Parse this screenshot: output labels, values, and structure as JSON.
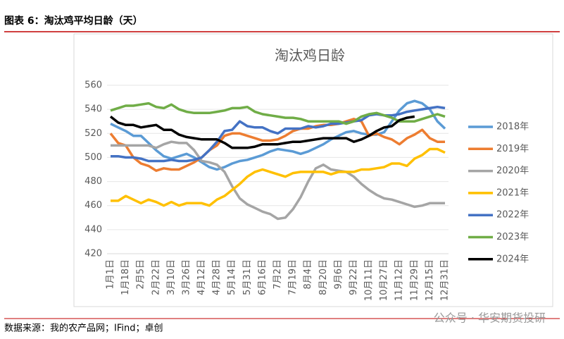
{
  "page": {
    "header": "图表 6：淘汰鸡平均日龄（天）",
    "source": "数据来源：我的农产品网；IFind；卓创",
    "watermark": "公众号 · 华安期货投研"
  },
  "chart_data": {
    "type": "line",
    "title": "淘汰鸡日龄",
    "categories": [
      "1月1日",
      null,
      "1月18日",
      null,
      "2月5日",
      null,
      "2月22日",
      null,
      "3月10日",
      null,
      "3月26日",
      null,
      "4月12日",
      null,
      "4月28日",
      null,
      "5月14日",
      null,
      "5月31日",
      null,
      "6月16日",
      null,
      "7月2日",
      null,
      "7月19日",
      null,
      "8月4日",
      null,
      "8月20日",
      null,
      "9月6日",
      null,
      "9月22日",
      null,
      "10月11日",
      null,
      "10月27日",
      null,
      "11月12日",
      null,
      "11月29日",
      null,
      "12月15日",
      null,
      "12月31日"
    ],
    "series": [
      {
        "name": "2018年",
        "color": "#5b9bd5",
        "values": [
          528,
          525,
          522,
          518,
          518,
          512,
          506,
          501,
          499,
          501,
          503,
          500,
          496,
          492,
          490,
          492,
          495,
          497,
          498,
          500,
          502,
          505,
          507,
          506,
          505,
          503,
          505,
          508,
          511,
          515,
          518,
          521,
          522,
          520,
          519,
          519,
          521,
          530,
          539,
          545,
          547,
          545,
          540,
          530,
          524
        ]
      },
      {
        "name": "2019年",
        "color": "#ed7d31",
        "values": [
          520,
          512,
          510,
          500,
          495,
          493,
          489,
          491,
          490,
          490,
          493,
          496,
          500,
          506,
          510,
          518,
          520,
          520,
          518,
          516,
          514,
          514,
          515,
          518,
          522,
          524,
          524,
          526,
          527,
          527,
          528,
          530,
          532,
          530,
          518,
          520,
          517,
          515,
          511,
          516,
          519,
          523,
          516,
          513,
          513
        ]
      },
      {
        "name": "2020年",
        "color": "#a5a5a5",
        "values": [
          510,
          510,
          510,
          510,
          510,
          510,
          508,
          511,
          513,
          512,
          512,
          506,
          497,
          496,
          494,
          488,
          476,
          466,
          461,
          458,
          455,
          453,
          449,
          450,
          457,
          467,
          480,
          491,
          494,
          490,
          489,
          488,
          484,
          478,
          473,
          469,
          466,
          465,
          463,
          461,
          459,
          460,
          462,
          462,
          462
        ]
      },
      {
        "name": "2021年",
        "color": "#ffc000",
        "values": [
          464,
          464,
          468,
          465,
          462,
          465,
          463,
          460,
          463,
          460,
          462,
          462,
          462,
          460,
          465,
          468,
          473,
          478,
          484,
          488,
          490,
          488,
          486,
          484,
          487,
          488,
          488,
          488,
          488,
          486,
          488,
          488,
          488,
          490,
          490,
          491,
          492,
          495,
          495,
          493,
          499,
          502,
          507,
          507,
          504
        ]
      },
      {
        "name": "2022年",
        "color": "#4472c4",
        "values": [
          501,
          501,
          500,
          500,
          499,
          497,
          497,
          497,
          498,
          497,
          497,
          498,
          500,
          506,
          513,
          522,
          523,
          530,
          526,
          525,
          525,
          522,
          520,
          524,
          524,
          524,
          526,
          525,
          526,
          528,
          528,
          529,
          530,
          531,
          535,
          536,
          535,
          535,
          536,
          538,
          539,
          540,
          541,
          542,
          541
        ]
      },
      {
        "name": "2023年",
        "color": "#70ad47",
        "values": [
          539,
          541,
          543,
          543,
          544,
          545,
          542,
          541,
          544,
          540,
          538,
          537,
          537,
          537,
          538,
          539,
          541,
          541,
          542,
          538,
          536,
          535,
          534,
          533,
          533,
          532,
          530,
          530,
          530,
          530,
          530,
          528,
          530,
          534,
          536,
          537,
          535,
          533,
          530,
          530,
          530,
          532,
          534,
          536,
          534
        ]
      },
      {
        "name": "2024年",
        "color": "#000000",
        "values": [
          534,
          529,
          527,
          527,
          525,
          526,
          527,
          523,
          523,
          519,
          517,
          516,
          515,
          515,
          515,
          512,
          508,
          508,
          508,
          509,
          511,
          511,
          511,
          512,
          513,
          513,
          514,
          515,
          516,
          516,
          516,
          516,
          513,
          515,
          518,
          522,
          525,
          526,
          531,
          533,
          534,
          null,
          null,
          null,
          null
        ]
      }
    ],
    "ylim": [
      420,
      560
    ],
    "yticks": [
      420,
      440,
      460,
      480,
      500,
      520,
      540,
      560
    ],
    "grid": true,
    "legend": "right"
  }
}
